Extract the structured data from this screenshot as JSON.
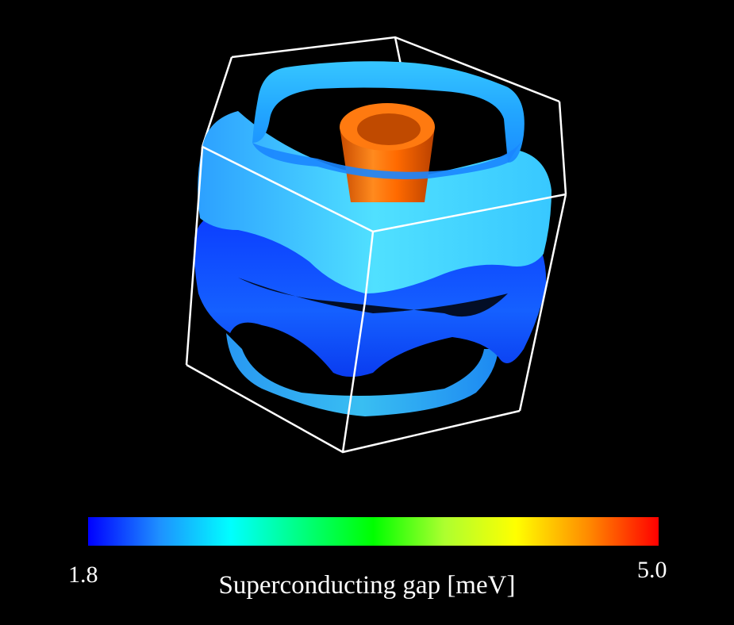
{
  "colorbar": {
    "min_label": "1.8",
    "max_label": "5.0",
    "title": "Superconducting gap [meV]",
    "min_value": 1.8,
    "max_value": 5.0,
    "colors": [
      "#0000ff",
      "#1e90ff",
      "#00ffff",
      "#00ff7f",
      "#00ff00",
      "#adff2f",
      "#ffff00",
      "#ff8c00",
      "#ff0000"
    ]
  },
  "surfaces": {
    "cylinder_color": "#ff6a00",
    "sheet_colors": [
      "#0a4cff",
      "#2aa8ff",
      "#40d8ff"
    ]
  }
}
